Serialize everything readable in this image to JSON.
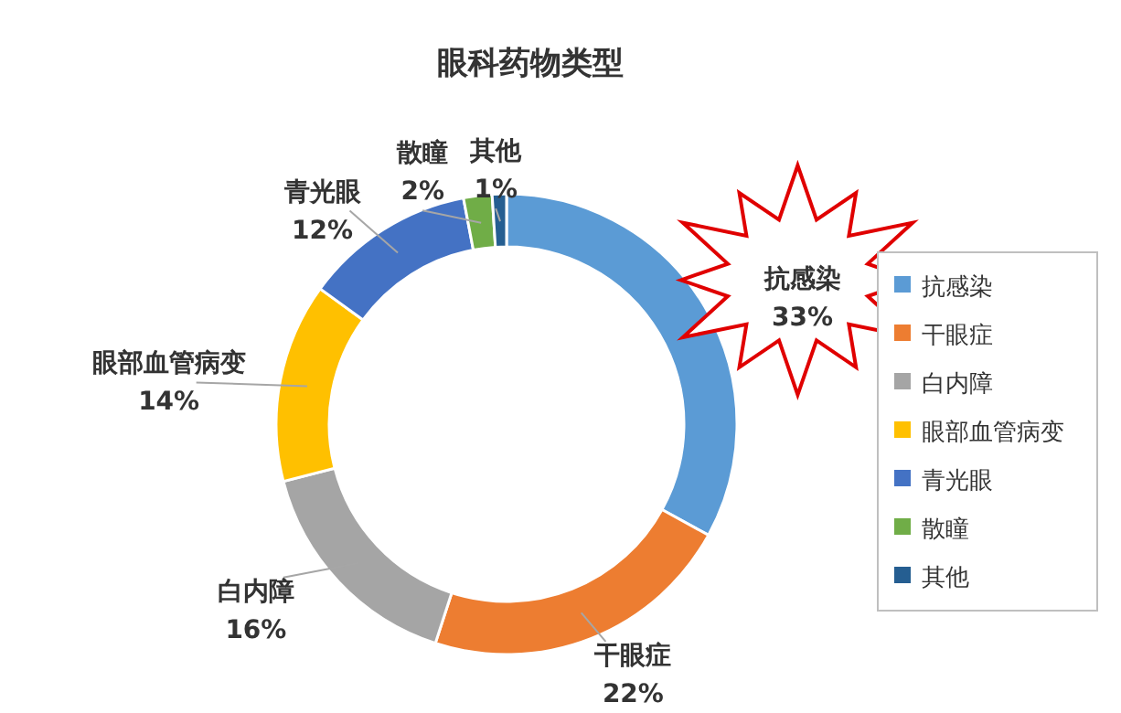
{
  "chart_data": {
    "type": "donut",
    "title": "眼科药物类型",
    "categories": [
      "抗感染",
      "干眼症",
      "白内障",
      "眼部血管病变",
      "青光眼",
      "散瞳",
      "其他"
    ],
    "values": [
      33,
      22,
      16,
      14,
      12,
      2,
      1
    ],
    "colors": [
      "#5b9bd5",
      "#ed7d31",
      "#a5a5a5",
      "#ffc000",
      "#4472c4",
      "#70ad47",
      "#255e91"
    ],
    "value_labels": [
      "33%",
      "22%",
      "16%",
      "14%",
      "12%",
      "2%",
      "1%"
    ],
    "legend": "right"
  }
}
